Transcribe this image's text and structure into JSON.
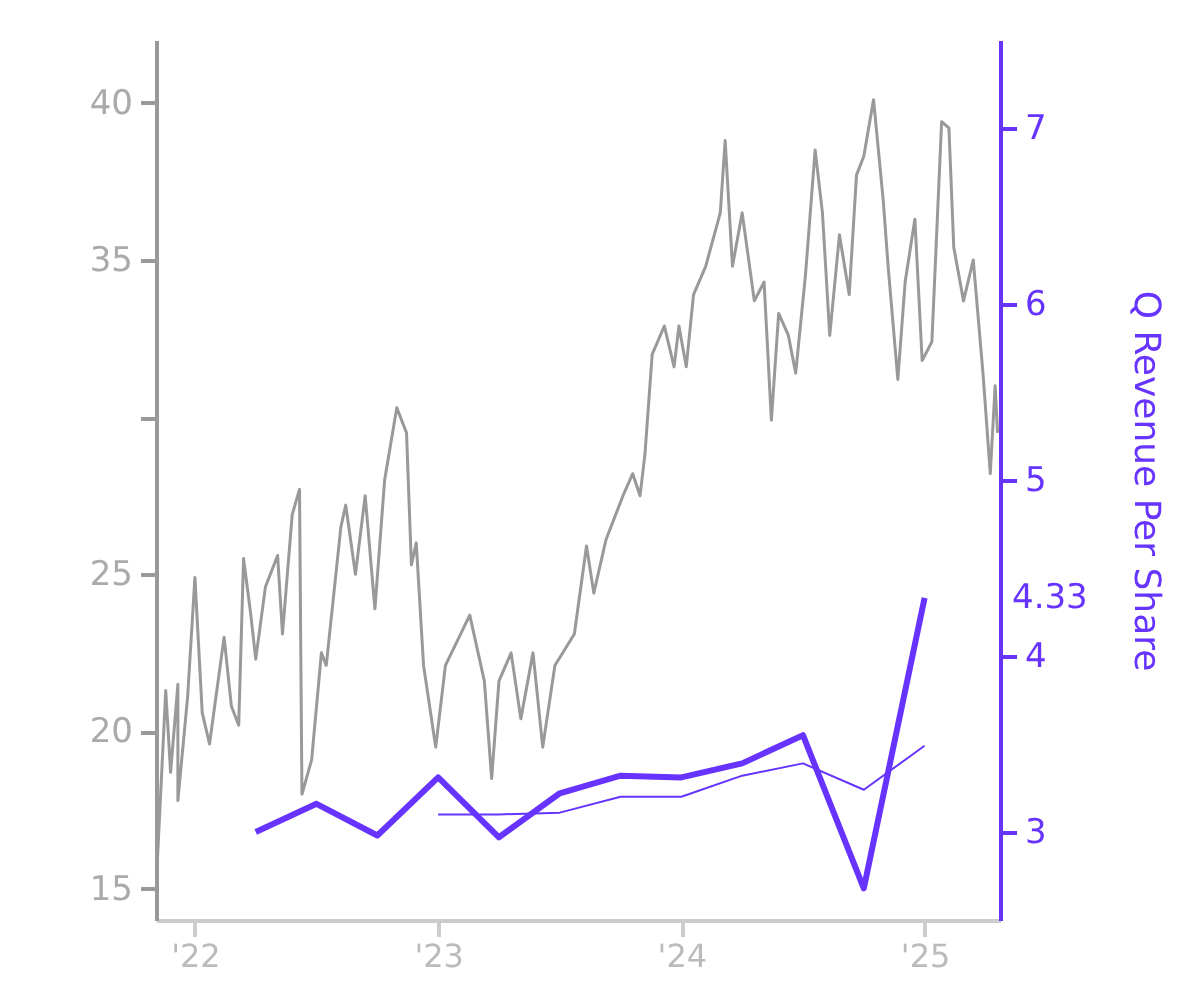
{
  "chart_data": {
    "type": "line",
    "y2label": "Q Revenue Per Share",
    "xlim": [
      2021.84,
      2025.31
    ],
    "xticks": [
      {
        "value": 2022,
        "label": "'22"
      },
      {
        "value": 2023,
        "label": "'23"
      },
      {
        "value": 2024,
        "label": "'24"
      },
      {
        "value": 2025,
        "label": "'25"
      }
    ],
    "ylim": [
      14,
      42
    ],
    "yticks": [
      15,
      20,
      25,
      {
        "value": 30,
        "label": null
      },
      35,
      40
    ],
    "y2lim": [
      2.5,
      7.5
    ],
    "y2ticks": [
      3,
      4,
      5,
      6,
      7
    ],
    "grid": false,
    "series": [
      {
        "color": "#999999",
        "x": [
          2021.84,
          2021.88,
          2021.9,
          2021.93,
          2021.93,
          2021.97,
          2022.0,
          2022.03,
          2022.06,
          2022.12,
          2022.15,
          2022.18,
          2022.2,
          2022.23,
          2022.25,
          2022.29,
          2022.34,
          2022.36,
          2022.4,
          2022.43,
          2022.44,
          2022.48,
          2022.52,
          2022.54,
          2022.6,
          2022.62,
          2022.66,
          2022.7,
          2022.74,
          2022.78,
          2022.83,
          2022.87,
          2022.89,
          2022.91,
          2022.94,
          2022.99,
          2023.03,
          2023.13,
          2023.19,
          2023.22,
          2023.25,
          2023.3,
          2023.34,
          2023.39,
          2023.43,
          2023.48,
          2023.56,
          2023.61,
          2023.64,
          2023.69,
          2023.76,
          2023.8,
          2023.83,
          2023.85,
          2023.88,
          2023.93,
          2023.97,
          2023.99,
          2024.02,
          2024.05,
          2024.1,
          2024.16,
          2024.18,
          2024.21,
          2024.25,
          2024.3,
          2024.34,
          2024.37,
          2024.4,
          2024.44,
          2024.47,
          2024.51,
          2024.55,
          2024.58,
          2024.61,
          2024.65,
          2024.69,
          2024.72,
          2024.75,
          2024.79,
          2024.83,
          2024.85,
          2024.89,
          2024.92,
          2024.96,
          2024.99,
          2025.03,
          2025.07,
          2025.1,
          2025.12,
          2025.16,
          2025.2,
          2025.24,
          2025.27,
          2025.29,
          2025.3
        ],
        "values": [
          15.0,
          21.3,
          18.7,
          21.5,
          17.8,
          21.1,
          24.9,
          20.6,
          19.6,
          23.0,
          20.8,
          20.2,
          25.5,
          23.7,
          22.3,
          24.6,
          25.6,
          23.1,
          26.9,
          27.7,
          18.0,
          19.1,
          22.5,
          22.1,
          26.5,
          27.2,
          25.0,
          27.5,
          23.9,
          28.0,
          30.3,
          29.5,
          25.3,
          26.0,
          22.1,
          19.5,
          22.1,
          23.7,
          21.6,
          18.5,
          21.6,
          22.5,
          20.4,
          22.5,
          19.5,
          22.1,
          23.1,
          25.9,
          24.4,
          26.1,
          27.5,
          28.2,
          27.5,
          28.8,
          32.0,
          32.9,
          31.6,
          32.9,
          31.6,
          33.9,
          34.8,
          36.5,
          38.8,
          34.8,
          36.5,
          33.7,
          34.3,
          29.9,
          33.3,
          32.6,
          31.4,
          34.5,
          38.5,
          36.5,
          32.6,
          35.8,
          33.9,
          37.7,
          38.3,
          40.1,
          36.9,
          34.8,
          31.2,
          34.3,
          36.3,
          31.8,
          32.4,
          39.4,
          39.2,
          35.4,
          33.7,
          35.0,
          31.4,
          28.2,
          31.0,
          29.5
        ]
      },
      {
        "color": "#6633ff",
        "axis": "y2",
        "x": [
          2022.25,
          2022.5,
          2022.75,
          2023.0,
          2023.25,
          2023.5,
          2023.75,
          2024.0,
          2024.25,
          2024.5,
          2024.75,
          2025.0
        ],
        "values": [
          3.0,
          3.16,
          2.98,
          3.31,
          2.97,
          3.22,
          3.32,
          3.31,
          3.39,
          3.55,
          2.68,
          4.33
        ]
      },
      {
        "color": "#6633ff",
        "axis": "y2",
        "x": [
          2023.0,
          2023.25,
          2023.5,
          2023.75,
          2024.0,
          2024.25,
          2024.5,
          2024.75,
          2025.0
        ],
        "values": [
          3.1,
          3.1,
          3.11,
          3.2,
          3.2,
          3.32,
          3.39,
          3.24,
          3.49
        ]
      }
    ],
    "annotations": [
      "4.33"
    ]
  }
}
